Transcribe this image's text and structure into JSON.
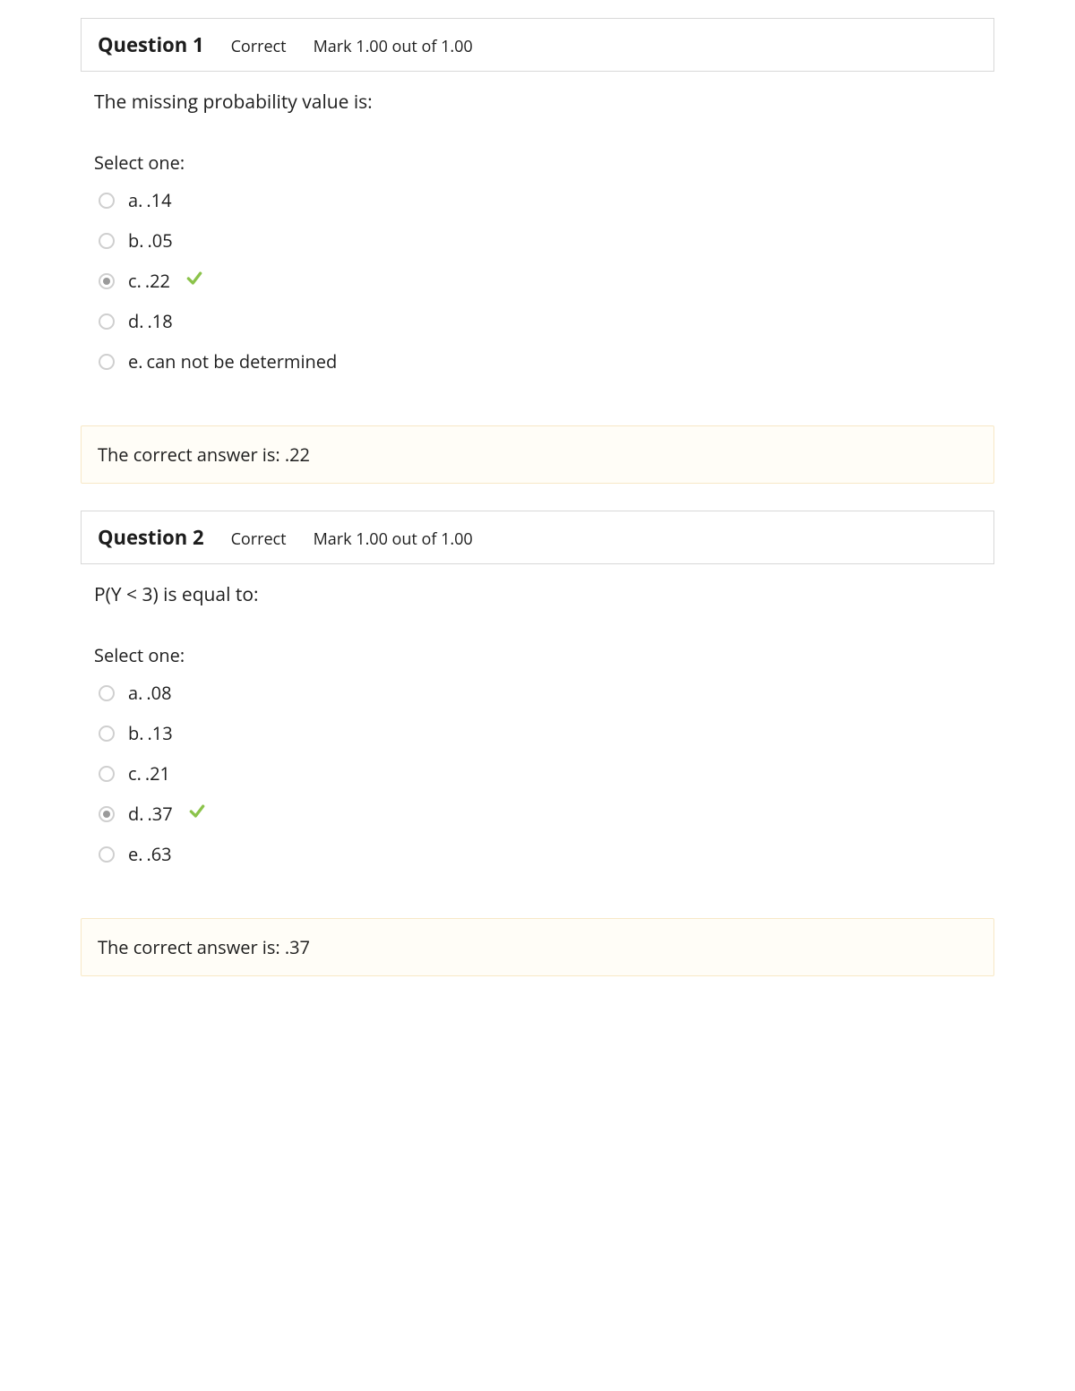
{
  "colors": {
    "header_border": "#d8d8d8",
    "radio_border": "#cfcfcf",
    "radio_fill": "#9a9a9a",
    "feedback_border": "#f8e8c6",
    "feedback_bg": "#fffdf7",
    "check_color": "#8bc34a",
    "text": "#1d1d1d"
  },
  "labels": {
    "select_one": "Select one:",
    "question_prefix": "Question"
  },
  "questions": [
    {
      "number": "1",
      "status": "Correct",
      "mark": "Mark 1.00 out of 1.00",
      "prompt": "The missing probability value is:",
      "options": [
        {
          "letter": "a.",
          "text": ".14",
          "selected": false,
          "correct": false
        },
        {
          "letter": "b.",
          "text": ".05",
          "selected": false,
          "correct": false
        },
        {
          "letter": "c.",
          "text": ".22",
          "selected": true,
          "correct": true
        },
        {
          "letter": "d.",
          "text": ".18",
          "selected": false,
          "correct": false
        },
        {
          "letter": "e.",
          "text": "can not be determined",
          "selected": false,
          "correct": false
        }
      ],
      "feedback": "The correct answer is: .22"
    },
    {
      "number": "2",
      "status": "Correct",
      "mark": "Mark 1.00 out of 1.00",
      "prompt": "P(Y < 3) is equal to:",
      "options": [
        {
          "letter": "a.",
          "text": ".08",
          "selected": false,
          "correct": false
        },
        {
          "letter": "b.",
          "text": ".13",
          "selected": false,
          "correct": false
        },
        {
          "letter": "c.",
          "text": ".21",
          "selected": false,
          "correct": false
        },
        {
          "letter": "d.",
          "text": ".37",
          "selected": true,
          "correct": true
        },
        {
          "letter": "e.",
          "text": ".63",
          "selected": false,
          "correct": false
        }
      ],
      "feedback": "The correct answer is: .37"
    }
  ]
}
